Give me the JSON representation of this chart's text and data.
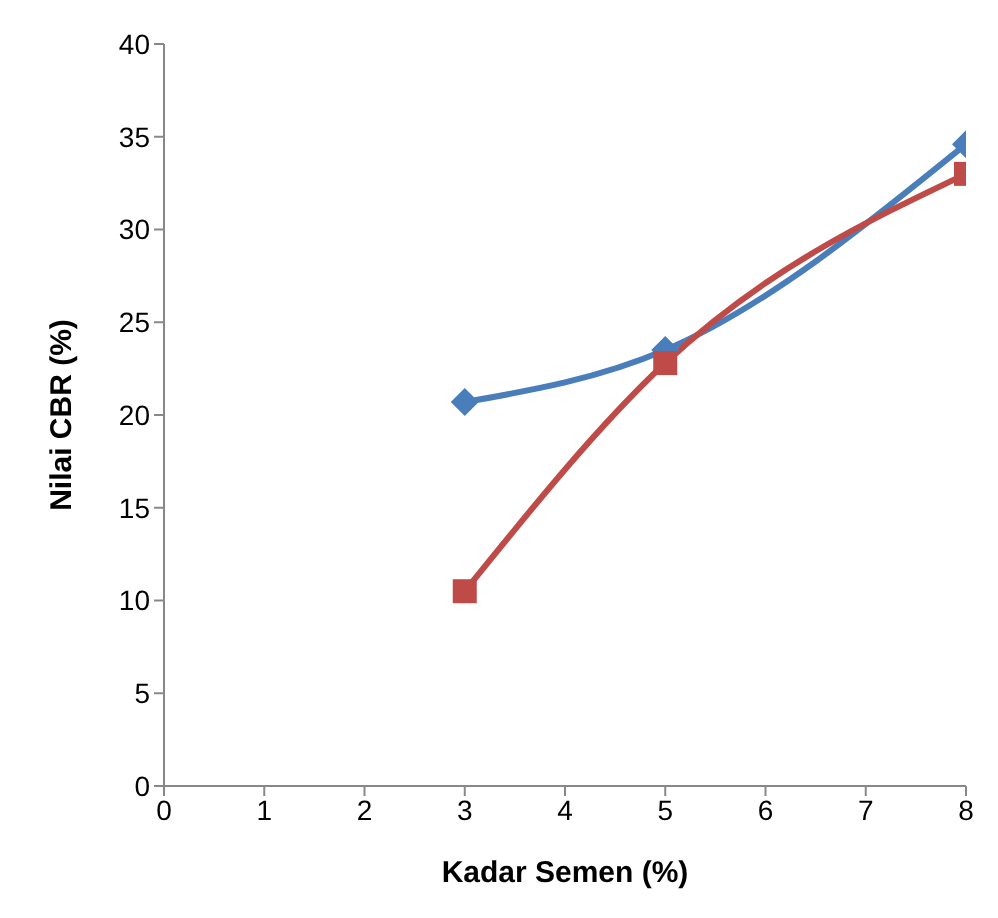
{
  "chart_data": {
    "type": "line",
    "xlabel": "Kadar Semen  (%)",
    "ylabel": "Nilai CBR (%)",
    "xlim": [
      0,
      8
    ],
    "xticks": [
      0,
      1,
      2,
      3,
      4,
      5,
      6,
      7,
      8
    ],
    "ylim": [
      0,
      40
    ],
    "yticks": [
      0,
      5,
      10,
      15,
      20,
      25,
      30,
      35,
      40
    ],
    "grid": false,
    "series": [
      {
        "color": "#4a7ebb",
        "marker": "diamond",
        "x": [
          3,
          5,
          8
        ],
        "values": [
          20.7,
          23.5,
          34.6
        ]
      },
      {
        "color": "#be4b48",
        "marker": "square",
        "x": [
          3,
          5,
          8
        ],
        "values": [
          10.5,
          22.8,
          33
        ]
      }
    ]
  }
}
